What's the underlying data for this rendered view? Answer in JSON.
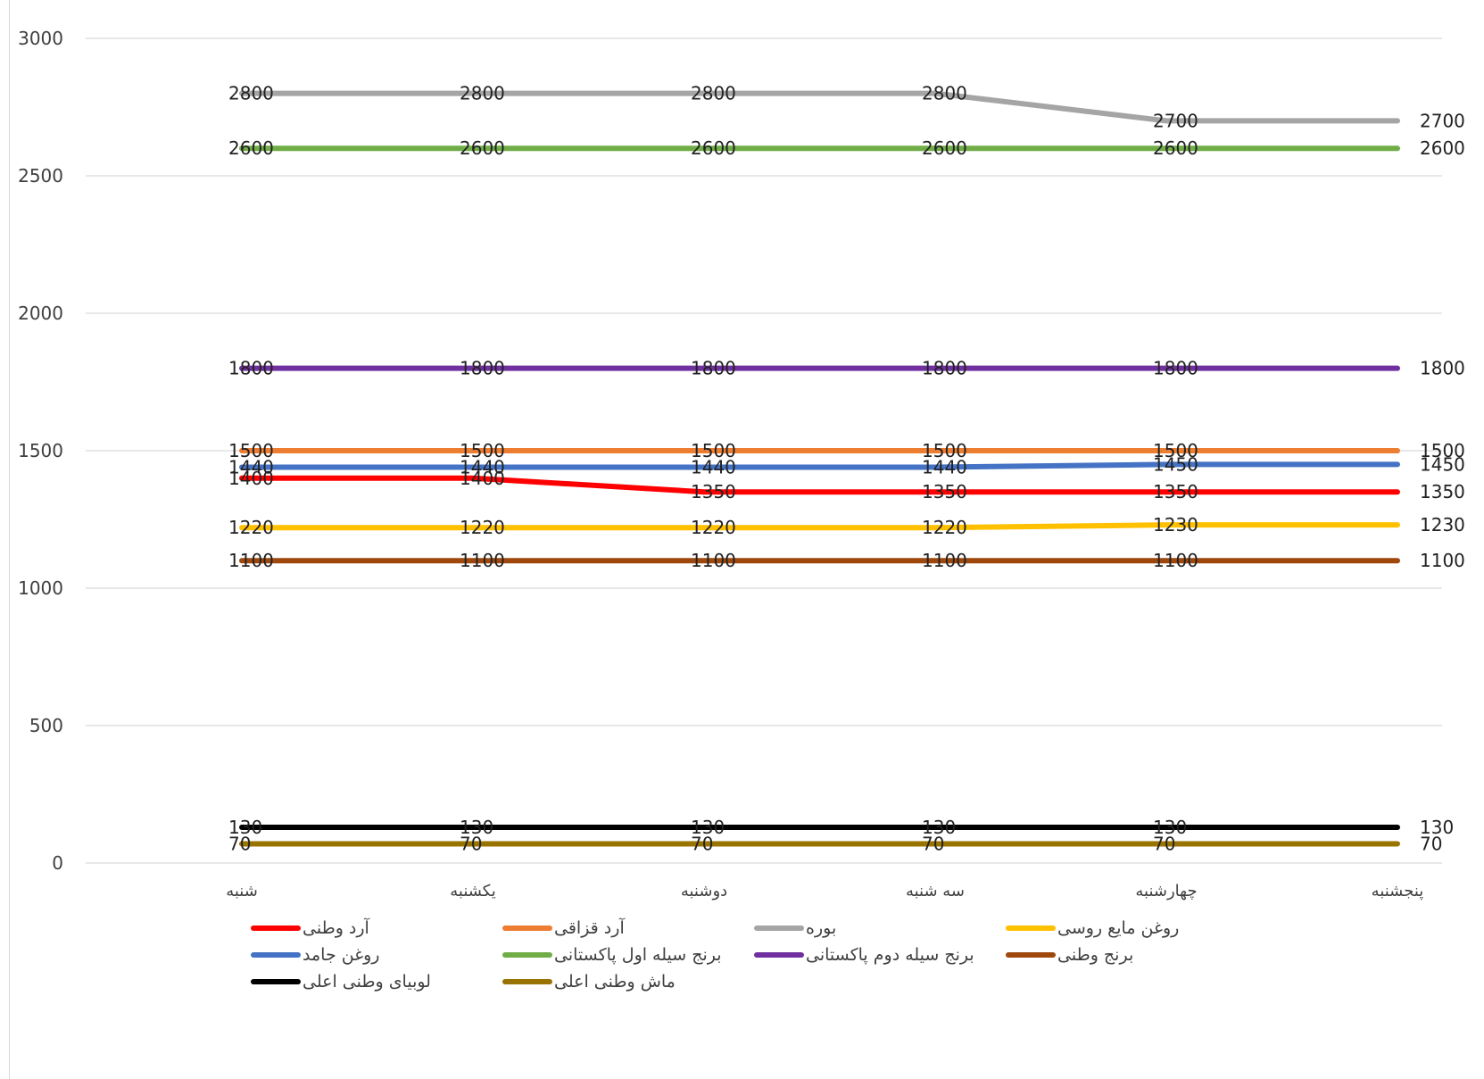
{
  "chart_data": {
    "type": "line",
    "title": "",
    "xlabel": "",
    "ylabel": "",
    "ylim": [
      0,
      3000
    ],
    "yticks": [
      0,
      500,
      1000,
      1500,
      2000,
      2500,
      3000
    ],
    "grid": true,
    "legend_position": "bottom",
    "data_labels": true,
    "categories": [
      "شنبه",
      "یکشنبه",
      "دوشنبه",
      "سه شنبه",
      "چهارشنبه",
      "پنجشنبه"
    ],
    "series": [
      {
        "name": "آرد وطنی",
        "color": "#ff0000",
        "values": [
          1400,
          1400,
          1350,
          1350,
          1350,
          1350
        ]
      },
      {
        "name": "آرد قزاقی",
        "color": "#ed7d31",
        "values": [
          1500,
          1500,
          1500,
          1500,
          1500,
          1500
        ]
      },
      {
        "name": "بوره",
        "color": "#a5a5a5",
        "values": [
          2800,
          2800,
          2800,
          2800,
          2700,
          2700
        ]
      },
      {
        "name": "روغن مایع روسی",
        "color": "#ffc000",
        "values": [
          1220,
          1220,
          1220,
          1220,
          1230,
          1230
        ]
      },
      {
        "name": "روغن جامد",
        "color": "#4472c4",
        "values": [
          1440,
          1440,
          1440,
          1440,
          1450,
          1450
        ]
      },
      {
        "name": "برنج سیله اول پاکستانی",
        "color": "#70ad47",
        "values": [
          2600,
          2600,
          2600,
          2600,
          2600,
          2600
        ]
      },
      {
        "name": "برنج سیله دوم پاکستانی",
        "color": "#7030a0",
        "values": [
          1800,
          1800,
          1800,
          1800,
          1800,
          1800
        ]
      },
      {
        "name": "برنج وطنی",
        "color": "#9e480e",
        "values": [
          1100,
          1100,
          1100,
          1100,
          1100,
          1100
        ]
      },
      {
        "name": "لوبیای وطنی اعلی",
        "color": "#000000",
        "values": [
          130,
          130,
          130,
          130,
          130,
          130
        ]
      },
      {
        "name": "ماش وطنی اعلی",
        "color": "#997300",
        "values": [
          70,
          70,
          70,
          70,
          70,
          70
        ]
      }
    ]
  }
}
